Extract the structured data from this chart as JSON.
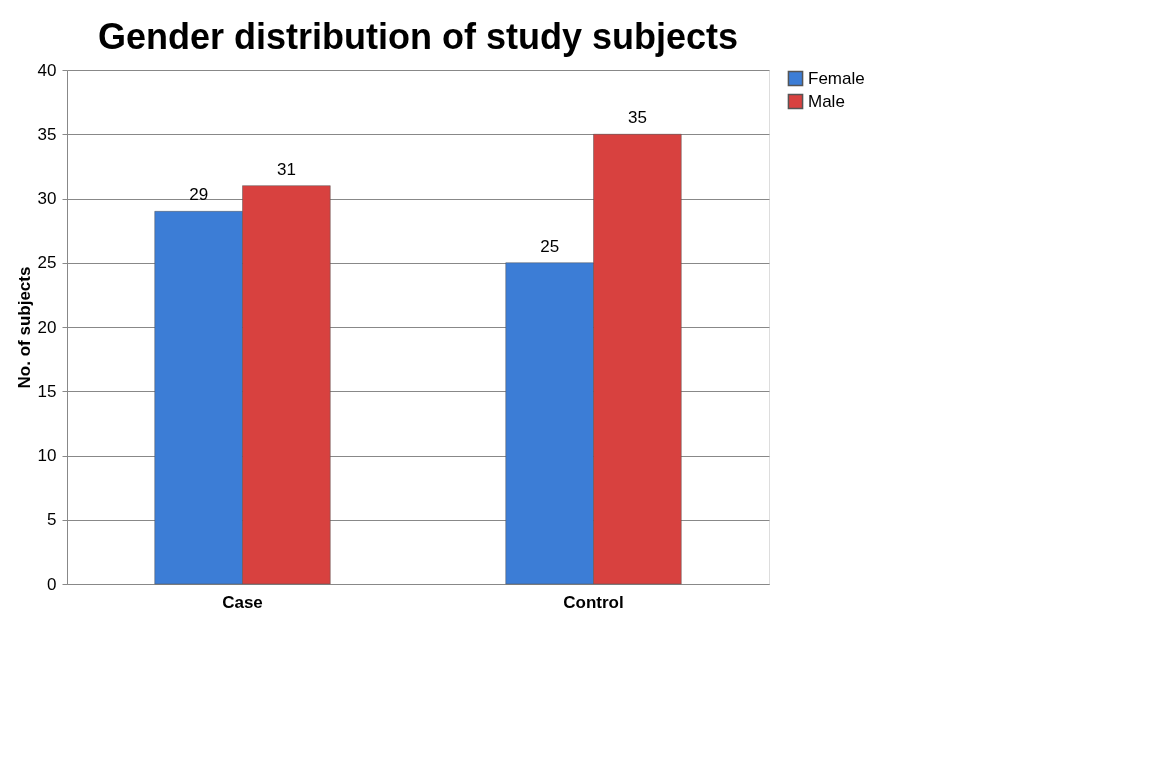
{
  "chart_data": {
    "type": "bar",
    "title": "Gender distribution of study subjects",
    "ylabel": "No. of subjects",
    "categories": [
      "Case",
      "Control"
    ],
    "series": [
      {
        "name": "Female",
        "color": "#3c7dd6",
        "values": [
          29,
          25
        ]
      },
      {
        "name": "Male",
        "color": "#d8413f",
        "values": [
          31,
          35
        ]
      }
    ],
    "ylim": [
      0,
      40
    ],
    "yticks": [
      0,
      5,
      10,
      15,
      20,
      25,
      30,
      35,
      40
    ],
    "grid": "y",
    "legend": "right",
    "data_labels": true
  }
}
